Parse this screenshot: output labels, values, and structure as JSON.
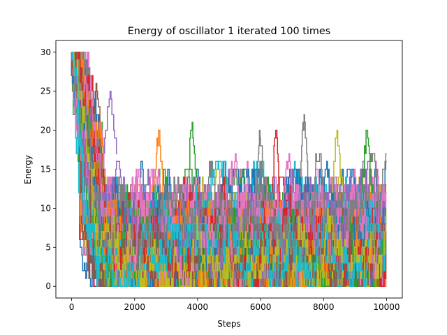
{
  "chart_data": {
    "type": "line",
    "title": "Energy of oscillator 1 iterated 100 times",
    "xlabel": "Steps",
    "ylabel": "Energy",
    "xlim": [
      -500,
      10500
    ],
    "ylim": [
      -1.5,
      31.5
    ],
    "x_ticks": [
      0,
      2000,
      4000,
      6000,
      8000,
      10000
    ],
    "x_tick_labels": [
      "0",
      "2000",
      "4000",
      "6000",
      "8000",
      "10000"
    ],
    "y_ticks": [
      0,
      5,
      10,
      15,
      20,
      25,
      30
    ],
    "y_tick_labels": [
      "0",
      "5",
      "10",
      "15",
      "20",
      "25",
      "30"
    ],
    "grid": false,
    "legend": "none",
    "x_range": [
      0,
      10000
    ],
    "initial_value": 30,
    "value_range": [
      0,
      30
    ],
    "series_count": 100,
    "palette": [
      "#1f77b4",
      "#ff7f0e",
      "#2ca02c",
      "#d62728",
      "#9467bd",
      "#8c564b",
      "#e377c2",
      "#7f7f7f",
      "#bcbd22",
      "#17becf"
    ],
    "highlighted_peaks": [
      {
        "x": 1250,
        "y": 25,
        "color": "#9467bd"
      },
      {
        "x": 2780,
        "y": 20,
        "color": "#ff7f0e"
      },
      {
        "x": 3850,
        "y": 21,
        "color": "#2ca02c"
      },
      {
        "x": 6000,
        "y": 20,
        "color": "#7f7f7f"
      },
      {
        "x": 6500,
        "y": 20,
        "color": "#d62728"
      },
      {
        "x": 7400,
        "y": 22,
        "color": "#7f7f7f"
      },
      {
        "x": 8450,
        "y": 20,
        "color": "#bcbd22"
      },
      {
        "x": 9400,
        "y": 20,
        "color": "#2ca02c"
      }
    ]
  }
}
